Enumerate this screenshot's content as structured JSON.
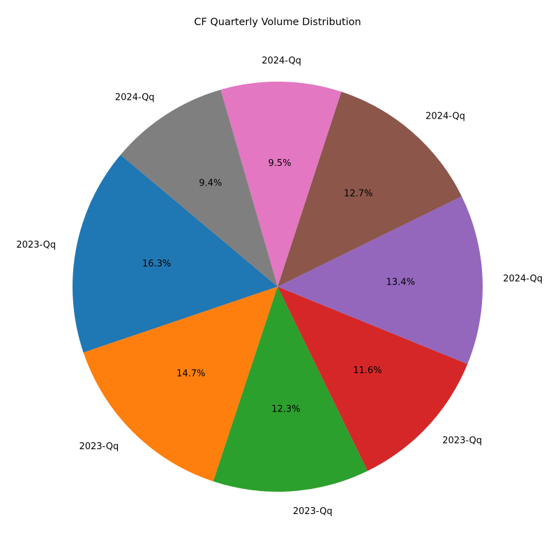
{
  "chart_data": {
    "type": "pie",
    "title": "CF Quarterly Volume Distribution",
    "start_angle_deg": 140,
    "direction": "counterclockwise",
    "slices": [
      {
        "label": "2023-Qq",
        "value": 16.3,
        "pct_label": "16.3%",
        "color": "#1f77b4"
      },
      {
        "label": "2023-Qq",
        "value": 14.7,
        "pct_label": "14.7%",
        "color": "#ff7f0e"
      },
      {
        "label": "2023-Qq",
        "value": 12.3,
        "pct_label": "12.3%",
        "color": "#2ca02c"
      },
      {
        "label": "2023-Qq",
        "value": 11.6,
        "pct_label": "11.6%",
        "color": "#d62728"
      },
      {
        "label": "2024-Qq",
        "value": 13.4,
        "pct_label": "13.4%",
        "color": "#9467bd"
      },
      {
        "label": "2024-Qq",
        "value": 12.7,
        "pct_label": "12.7%",
        "color": "#8c564b"
      },
      {
        "label": "2024-Qq",
        "value": 9.5,
        "pct_label": "9.5%",
        "color": "#e377c2"
      },
      {
        "label": "2024-Qq",
        "value": 9.4,
        "pct_label": "9.4%",
        "color": "#7f7f7f"
      }
    ]
  }
}
